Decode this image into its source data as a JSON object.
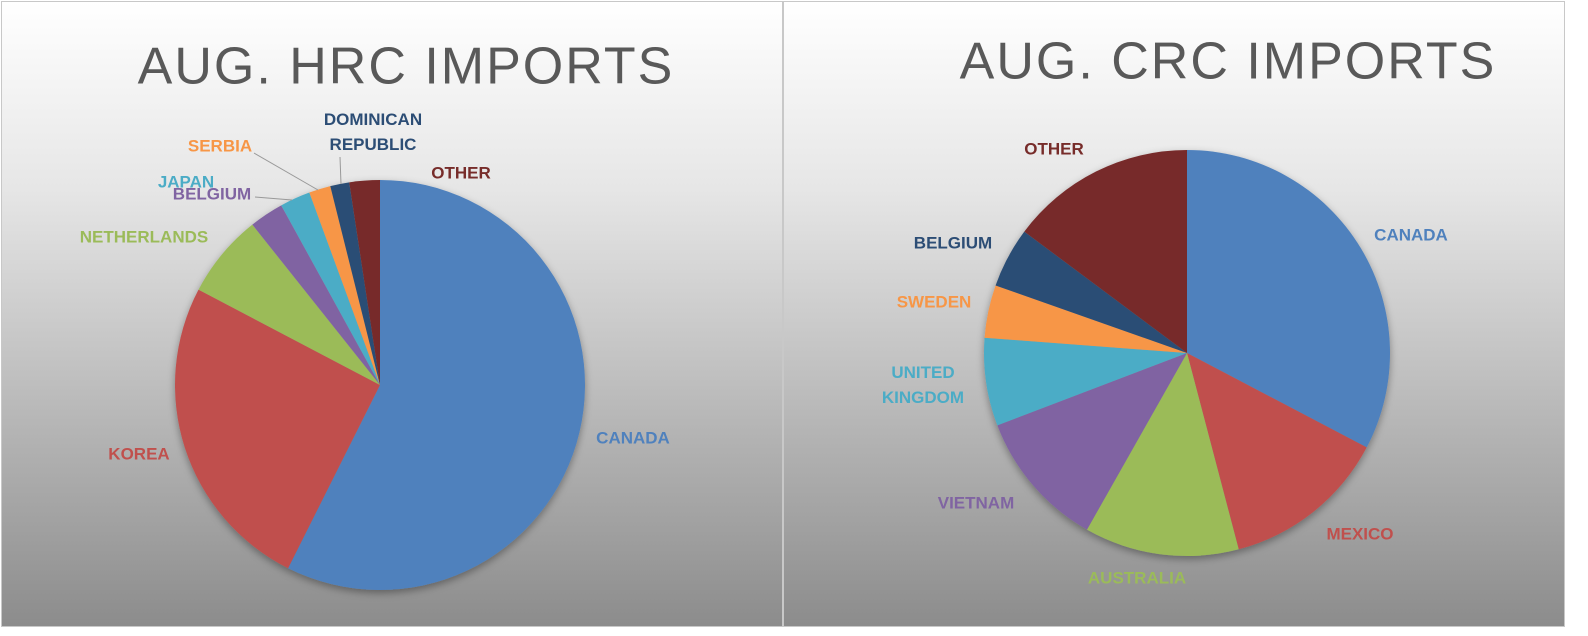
{
  "chart_data": [
    {
      "type": "pie",
      "title": "AUG. HRC IMPORTS",
      "categories": [
        "CANADA",
        "KOREA",
        "NETHERLANDS",
        "BELGIUM",
        "JAPAN",
        "SERBIA",
        "DOMINICAN REPUBLIC",
        "OTHER"
      ],
      "values": [
        57.4,
        25.3,
        6.6,
        2.7,
        2.4,
        1.7,
        1.5,
        2.4
      ],
      "colors": [
        "#4f81bd",
        "#c0504d",
        "#9bbb59",
        "#8064a2",
        "#4bacc6",
        "#f79646",
        "#2c4d75",
        "#772c2a"
      ]
    },
    {
      "type": "pie",
      "title": "AUG. CRC IMPORTS",
      "categories": [
        "CANADA",
        "MEXICO",
        "AUSTRALIA",
        "VIETNAM",
        "UNITED KINGDOM",
        "SWEDEN",
        "BELGIUM",
        "OTHER"
      ],
      "values": [
        32.7,
        13.2,
        12.3,
        11,
        7,
        4.2,
        4.8,
        14.8
      ],
      "colors": [
        "#4f81bd",
        "#c0504d",
        "#9bbb59",
        "#8064a2",
        "#4bacc6",
        "#f79646",
        "#2c4d75",
        "#772c2a"
      ]
    }
  ]
}
